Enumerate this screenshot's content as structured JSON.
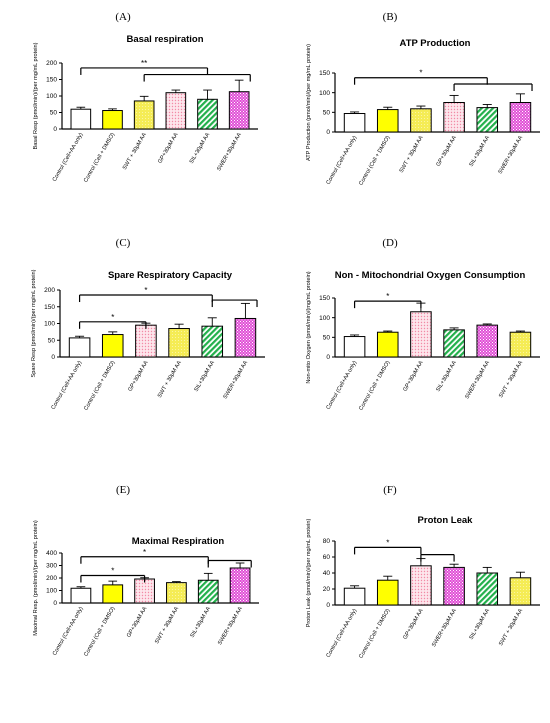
{
  "chart_data": [
    {
      "panel": "(A)",
      "type": "bar",
      "title": "Basal respiration",
      "ylabel": "Basal Resp (pmol/min)/(per mg/mL protein)",
      "ylim": [
        0,
        200
      ],
      "yticks": [
        0,
        50,
        100,
        150,
        200
      ],
      "categories": [
        "Control (Cell+AA only)",
        "Control (Cell + DMSO)",
        "SWT + 30μM AA",
        "GP+30μM AA",
        "SIL+30μM AA",
        "SWER+30μM AA"
      ],
      "values": [
        60,
        56,
        85,
        110,
        90,
        113
      ],
      "errors": [
        6,
        5,
        14,
        8,
        28,
        35
      ],
      "fills": [
        "white",
        "yellow",
        "yellow-pale",
        "pink-dots",
        "green-stripes",
        "magenta-grid"
      ],
      "significance": [
        {
          "label": "**",
          "from": 0,
          "to": 4,
          "level": 185
        },
        {
          "label": "",
          "from": 2,
          "to": 5,
          "level": 165
        }
      ]
    },
    {
      "panel": "(B)",
      "type": "bar",
      "title": "ATP Production",
      "ylabel": "ATP Production (pmol/min)/(per mg/mL protein)",
      "ylim": [
        0,
        150
      ],
      "yticks": [
        0,
        50,
        100,
        150
      ],
      "categories": [
        "Control (Cell+AA only)",
        "Control (Cell + DMSO)",
        "SWT + 30μM AA",
        "GP+30μM AA",
        "SIL+30μM AA",
        "SWER+30μM AA"
      ],
      "values": [
        47,
        57,
        59,
        75,
        62,
        75
      ],
      "errors": [
        4,
        6,
        7,
        18,
        8,
        22
      ],
      "fills": [
        "white",
        "yellow",
        "yellow-pale",
        "pink-dots",
        "green-stripes",
        "magenta-grid"
      ],
      "significance": [
        {
          "label": "*",
          "from": 0,
          "to": 4,
          "level": 138
        },
        {
          "label": "",
          "from": 3,
          "to": 5,
          "level": 122
        }
      ]
    },
    {
      "panel": "(C)",
      "type": "bar",
      "title": "Spare Respiratory Capacity",
      "ylabel": "Spare Resp (pmol/min)/(per mg/mL protein)",
      "ylim": [
        0,
        200
      ],
      "yticks": [
        0,
        50,
        100,
        150,
        200
      ],
      "categories": [
        "Control (Cell+AA only)",
        "Control (Cell + DMSO)",
        "GP+30μM AA",
        "SWT + 30μM AA",
        "SIL+30μM AA",
        "SWER+30μM AA"
      ],
      "values": [
        57,
        67,
        95,
        85,
        92,
        115
      ],
      "errors": [
        5,
        8,
        6,
        13,
        25,
        45
      ],
      "fills": [
        "white",
        "yellow",
        "pink-dots",
        "yellow-pale",
        "green-stripes",
        "magenta-grid"
      ],
      "significance": [
        {
          "label": "*",
          "from": 0,
          "to": 2,
          "level": 105
        },
        {
          "label": "*",
          "from": 0,
          "to": 4,
          "level": 185
        },
        {
          "label": "",
          "from": 4,
          "to": 5,
          "level": 170
        }
      ]
    },
    {
      "panel": "(D)",
      "type": "bar",
      "title": "Non - Mitochondrial Oxygen Consumption",
      "ylabel": "Non-mito Oxygen (pmol/min)/(mg/mL protein)",
      "ylim": [
        0,
        150
      ],
      "yticks": [
        0,
        50,
        100,
        150
      ],
      "categories": [
        "Control (Cell+AA only)",
        "Control (Cell + DMSO)",
        "GP+30μM AA",
        "SIL+30μM AA",
        "SWER+30μM AA",
        "SWT + 30μM AA"
      ],
      "values": [
        52,
        63,
        115,
        69,
        81,
        63
      ],
      "errors": [
        4,
        3,
        22,
        5,
        3,
        3
      ],
      "fills": [
        "white",
        "yellow",
        "pink-dots",
        "green-stripes",
        "magenta-grid",
        "yellow-pale"
      ],
      "significance": [
        {
          "label": "*",
          "from": 0,
          "to": 2,
          "level": 142
        }
      ]
    },
    {
      "panel": "(E)",
      "type": "bar",
      "title": "Maximal Respiration",
      "ylabel": "Maximal Resp. (pmol/min)/(per mg/mL protein)",
      "ylim": [
        0,
        400
      ],
      "yticks": [
        0,
        100,
        200,
        300,
        400
      ],
      "categories": [
        "Control (Cell+AA only)",
        "Control (Cell + DMSO)",
        "GP+30μM AA",
        "SWT + 30μM AA",
        "SIL+30μM AA",
        "SWER+30μM AA"
      ],
      "values": [
        118,
        145,
        192,
        163,
        182,
        280
      ],
      "errors": [
        12,
        30,
        10,
        8,
        55,
        40
      ],
      "fills": [
        "white",
        "yellow",
        "pink-dots",
        "yellow-pale",
        "green-stripes",
        "magenta-grid"
      ],
      "significance": [
        {
          "label": "*",
          "from": 0,
          "to": 2,
          "level": 220
        },
        {
          "label": "*",
          "from": 0,
          "to": 4,
          "level": 370
        },
        {
          "label": "",
          "from": 4,
          "to": 5,
          "level": 340
        }
      ]
    },
    {
      "panel": "(F)",
      "type": "bar",
      "title": "Proton Leak",
      "ylabel": "Proton Leak (pmol/min)/(per mg/mL protein)",
      "ylim": [
        0,
        80
      ],
      "yticks": [
        0,
        20,
        40,
        60,
        80
      ],
      "categories": [
        "Control (Cell+AA only)",
        "Control (Cell + DMSO)",
        "GP+30μM AA",
        "SWER+30μM AA",
        "SIL+30μM AA",
        "SWT + 30μM AA"
      ],
      "values": [
        21,
        31,
        49,
        47,
        40,
        34
      ],
      "errors": [
        3,
        5,
        9,
        4,
        7,
        7
      ],
      "fills": [
        "white",
        "yellow",
        "pink-dots",
        "magenta-grid",
        "green-stripes",
        "yellow-pale"
      ],
      "significance": [
        {
          "label": "*",
          "from": 0,
          "to": 2,
          "level": 72
        },
        {
          "label": "",
          "from": 2,
          "to": 3,
          "level": 63
        }
      ]
    }
  ]
}
